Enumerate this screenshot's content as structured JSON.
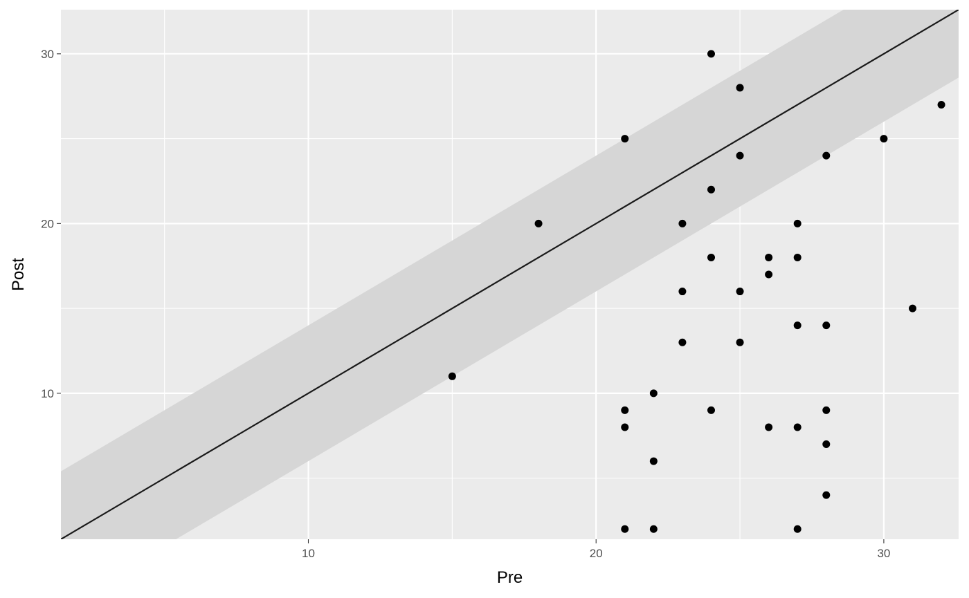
{
  "chart_data": {
    "type": "scatter",
    "title": "",
    "xlabel": "Pre",
    "ylabel": "Post",
    "xlim": [
      1.4,
      32.6
    ],
    "ylim": [
      1.4,
      32.6
    ],
    "x_ticks": [
      10,
      20,
      30
    ],
    "y_ticks": [
      10,
      20,
      30
    ],
    "x_tick_labels": [
      "10",
      "20",
      "30"
    ],
    "y_tick_labels": [
      "10",
      "20",
      "30"
    ],
    "grid": true,
    "reference_line": {
      "slope": 1,
      "intercept": 0
    },
    "band": {
      "half_width": 4
    },
    "points": [
      [
        24,
        30
      ],
      [
        25,
        28
      ],
      [
        21,
        25
      ],
      [
        25,
        24
      ],
      [
        28,
        24
      ],
      [
        30,
        25
      ],
      [
        32,
        27
      ],
      [
        24,
        22
      ],
      [
        18,
        20
      ],
      [
        23,
        20
      ],
      [
        27,
        20
      ],
      [
        24,
        18
      ],
      [
        26,
        18
      ],
      [
        27,
        18
      ],
      [
        26,
        17
      ],
      [
        23,
        16
      ],
      [
        25,
        16
      ],
      [
        31,
        15
      ],
      [
        27,
        14
      ],
      [
        28,
        14
      ],
      [
        23,
        13
      ],
      [
        25,
        13
      ],
      [
        15,
        11
      ],
      [
        22,
        10
      ],
      [
        21,
        9
      ],
      [
        24,
        9
      ],
      [
        28,
        9
      ],
      [
        21,
        8
      ],
      [
        26,
        8
      ],
      [
        27,
        8
      ],
      [
        28,
        7
      ],
      [
        22,
        6
      ],
      [
        28,
        4
      ],
      [
        21,
        2
      ],
      [
        22,
        2
      ],
      [
        27,
        2
      ]
    ],
    "colors": {
      "panel": "#ebebeb",
      "grid": "#ffffff",
      "band": "#d6d6d6",
      "line": "#1a1a1a",
      "point": "#000000",
      "tick_text": "#4d4d4d"
    }
  }
}
